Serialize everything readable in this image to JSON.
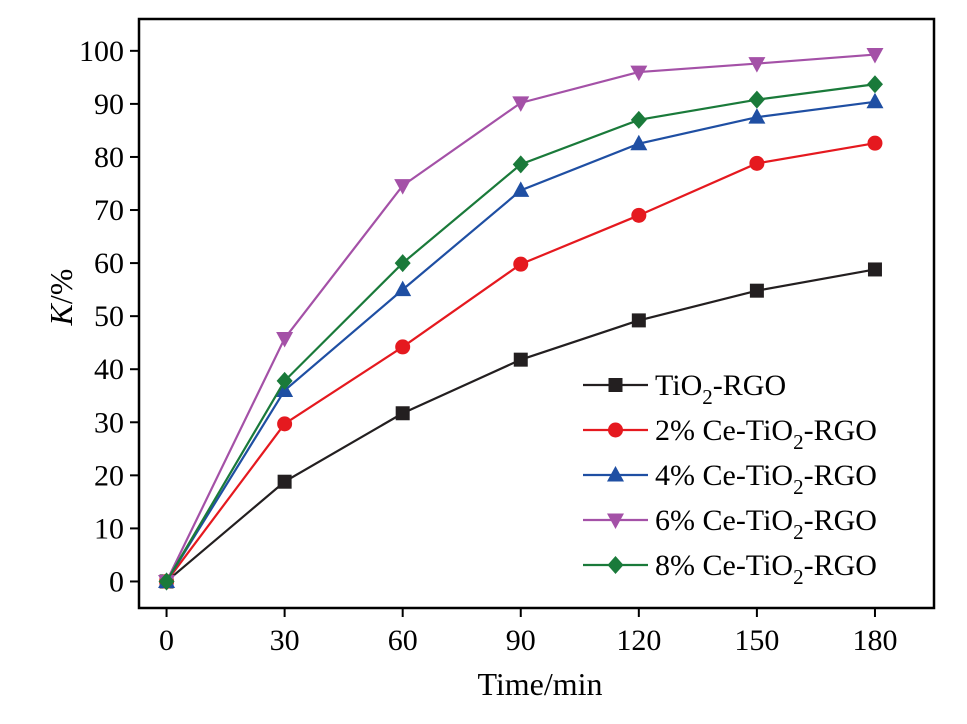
{
  "chart_data": {
    "type": "line",
    "xlabel": "Time/min",
    "ylabel": {
      "italic": "K",
      "rest": "/%"
    },
    "xlim": [
      -7,
      195
    ],
    "ylim": [
      -5,
      106
    ],
    "xticks": [
      0,
      30,
      60,
      90,
      120,
      150,
      180
    ],
    "xtick_labels": [
      "0",
      "30",
      "60",
      "90",
      "120",
      "150",
      "180"
    ],
    "yticks": [
      0,
      10,
      20,
      30,
      40,
      50,
      60,
      70,
      80,
      90,
      100
    ],
    "ytick_labels": [
      "0",
      "10",
      "20",
      "30",
      "40",
      "50",
      "60",
      "70",
      "80",
      "90",
      "100"
    ],
    "grid": false,
    "legend_position": "lower-right",
    "x": [
      0,
      30,
      60,
      90,
      120,
      150,
      180
    ],
    "series": [
      {
        "name": "TiO2-RGO",
        "label_parts": [
          "TiO",
          "2",
          "-RGO"
        ],
        "color": "#231f20",
        "marker": "square",
        "values": [
          0,
          18.8,
          31.7,
          41.8,
          49.2,
          54.8,
          58.8
        ]
      },
      {
        "name": "2% Ce-TiO2-RGO",
        "label_parts": [
          "2% Ce-TiO",
          "2",
          "-RGO"
        ],
        "color": "#e5191f",
        "marker": "circle",
        "values": [
          0,
          29.7,
          44.2,
          59.8,
          69.0,
          78.8,
          82.6
        ]
      },
      {
        "name": "4% Ce-TiO2-RGO",
        "label_parts": [
          "4% Ce-TiO",
          "2",
          "-RGO"
        ],
        "color": "#1f4fa3",
        "marker": "triangle-up",
        "values": [
          0,
          36.0,
          55.0,
          73.7,
          82.5,
          87.5,
          90.4
        ]
      },
      {
        "name": "6% Ce-TiO2-RGO",
        "label_parts": [
          "6% Ce-TiO",
          "2",
          "-RGO"
        ],
        "color": "#a451a7",
        "marker": "triangle-down",
        "values": [
          0,
          45.8,
          74.6,
          90.2,
          96.0,
          97.6,
          99.3
        ]
      },
      {
        "name": "8% Ce-TiO2-RGO",
        "label_parts": [
          "8% Ce-TiO",
          "2",
          "-RGO"
        ],
        "color": "#1a7a3a",
        "marker": "diamond",
        "values": [
          0,
          37.8,
          60.0,
          78.6,
          87.0,
          90.8,
          93.7
        ]
      }
    ]
  }
}
